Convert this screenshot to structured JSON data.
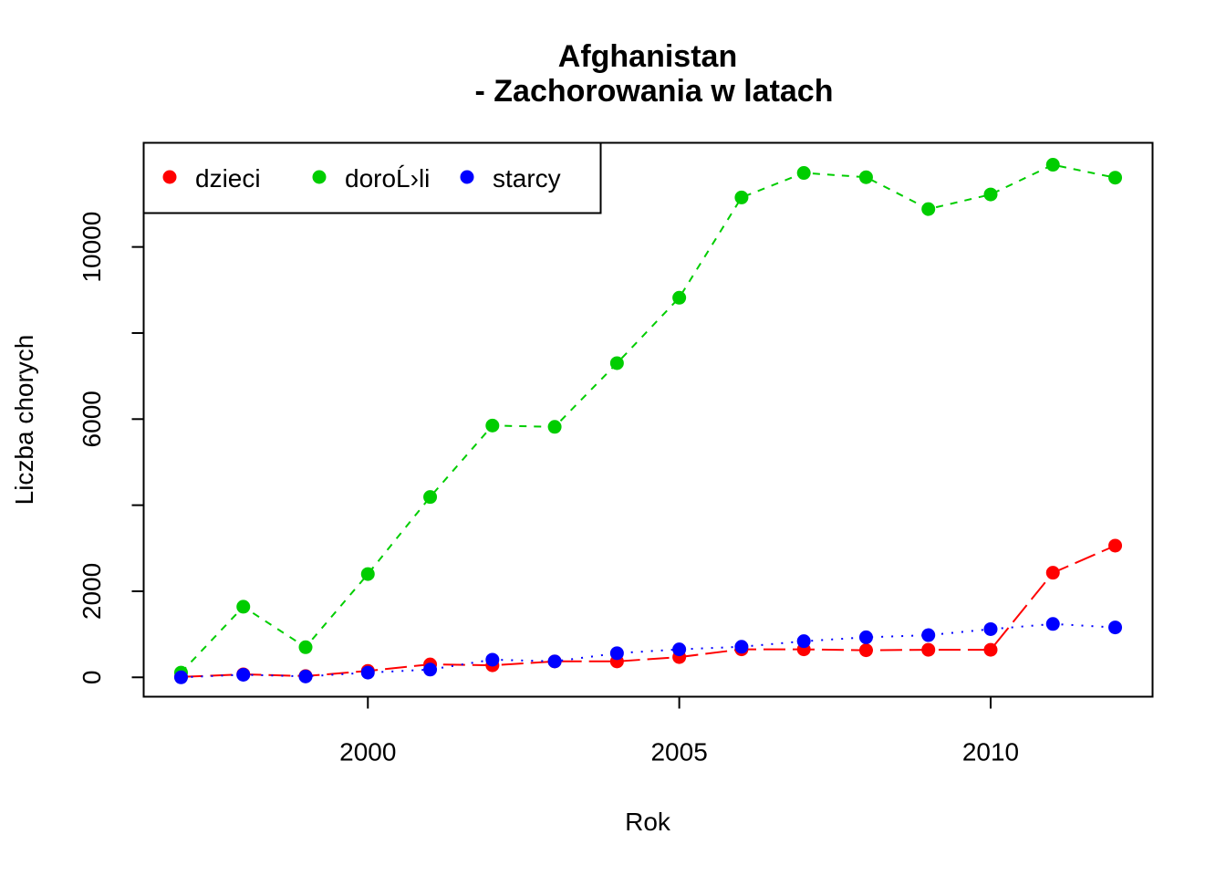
{
  "chart_data": {
    "type": "line",
    "title": "Afghanistan",
    "subtitle": "- Zachorowania w latach",
    "xlabel": "Rok",
    "ylabel": "Liczba chorych",
    "x": [
      1997,
      1998,
      1999,
      2000,
      2001,
      2002,
      2003,
      2004,
      2005,
      2006,
      2007,
      2008,
      2009,
      2010,
      2011,
      2012
    ],
    "xlim": [
      1996.4,
      2012.6
    ],
    "ylim": [
      -450,
      12420
    ],
    "x_ticks": [
      "2000",
      "2005",
      "2010"
    ],
    "y_ticks": [
      "0",
      "2000",
      "6000",
      "10000"
    ],
    "grid": false,
    "legend_position": "top-left",
    "series": [
      {
        "name": "dzieci",
        "color": "#ff0000",
        "line_style": "long-dash",
        "values": [
          10,
          70,
          30,
          150,
          300,
          280,
          370,
          370,
          470,
          650,
          650,
          630,
          640,
          640,
          2430,
          3060
        ]
      },
      {
        "name": "doroĹ›li",
        "color": "#00cd00",
        "line_style": "dashed",
        "values": [
          110,
          1640,
          700,
          2400,
          4190,
          5850,
          5820,
          7300,
          8820,
          11150,
          11720,
          11620,
          10880,
          11220,
          11910,
          11610
        ]
      },
      {
        "name": "starcy",
        "color": "#0000ff",
        "line_style": "dotted",
        "values": [
          0,
          60,
          20,
          110,
          180,
          410,
          370,
          560,
          650,
          710,
          840,
          930,
          980,
          1120,
          1240,
          1160
        ]
      }
    ]
  }
}
